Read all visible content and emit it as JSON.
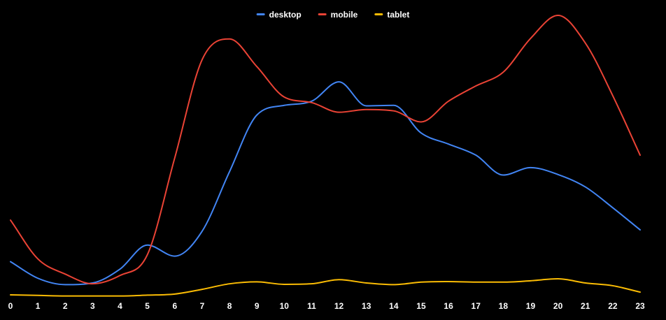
{
  "chart_data": {
    "type": "line",
    "title": "",
    "xlabel": "",
    "ylabel": "",
    "legend_position": "top-center",
    "grid": false,
    "background": "#000000",
    "x": [
      0,
      1,
      2,
      3,
      4,
      5,
      6,
      7,
      8,
      9,
      10,
      11,
      12,
      13,
      14,
      15,
      16,
      17,
      18,
      19,
      20,
      21,
      22,
      23
    ],
    "x_tick_labels": [
      "0",
      "1",
      "2",
      "3",
      "4",
      "5",
      "6",
      "7",
      "8",
      "9",
      "10",
      "11",
      "12",
      "13",
      "14",
      "15",
      "16",
      "17",
      "18",
      "19",
      "20",
      "21",
      "22",
      "23"
    ],
    "ylim": [
      0,
      100
    ],
    "series": [
      {
        "name": "desktop",
        "color": "#4285f4",
        "values": [
          12.5,
          6.5,
          4.2,
          4.8,
          9.8,
          18.5,
          14.5,
          23.5,
          45,
          65.5,
          69,
          70.5,
          77.5,
          68.8,
          69,
          59,
          55,
          51,
          43.8,
          46.5,
          44,
          39.5,
          32,
          24
        ]
      },
      {
        "name": "mobile",
        "color": "#ea4335",
        "values": [
          27.5,
          13.5,
          8,
          4.5,
          7.5,
          15,
          50,
          85.5,
          93,
          83,
          72,
          70,
          66.5,
          67.5,
          67,
          63,
          70.5,
          76,
          81,
          93.2,
          101.5,
          91.5,
          72.5,
          51
        ]
      },
      {
        "name": "tablet",
        "color": "#fbbc04",
        "values": [
          0.5,
          0.3,
          0.1,
          0.1,
          0.1,
          0.4,
          0.8,
          2.5,
          4.5,
          5.2,
          4.3,
          4.5,
          6,
          4.8,
          4.2,
          5.1,
          5.3,
          5.1,
          5.1,
          5.6,
          6.3,
          4.8,
          3.8,
          1.5
        ]
      }
    ]
  }
}
